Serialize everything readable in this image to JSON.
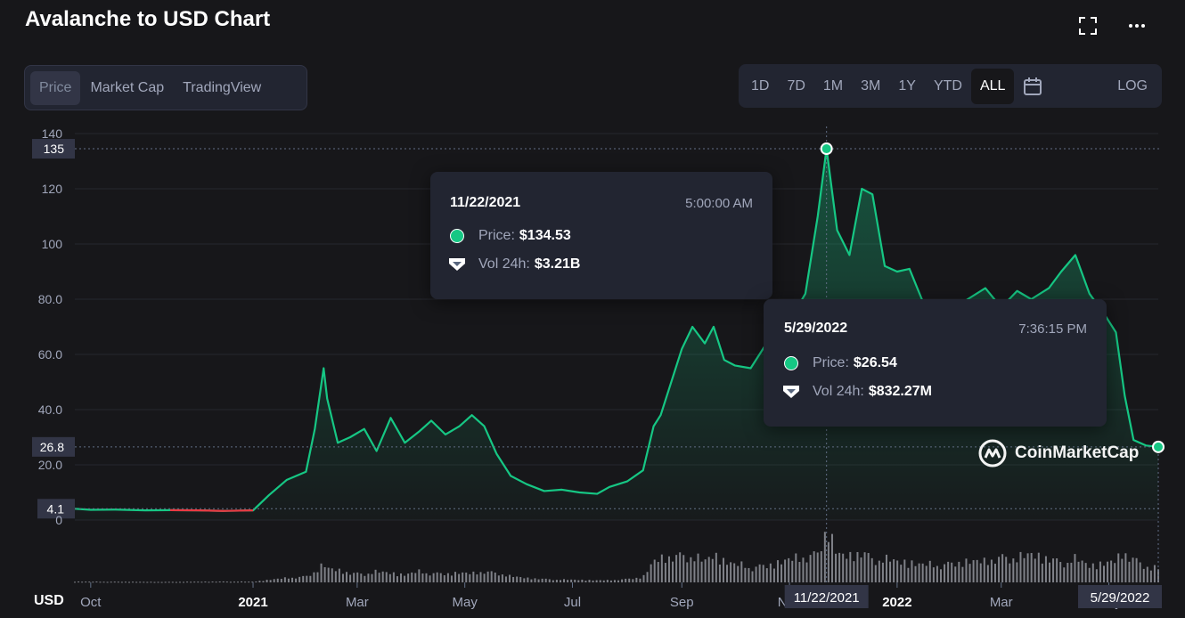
{
  "header": {
    "title": "Avalanche to USD Chart"
  },
  "tabs": [
    "Price",
    "Market Cap",
    "TradingView"
  ],
  "active_tab": "Price",
  "ranges": [
    "1D",
    "7D",
    "1M",
    "3M",
    "1Y",
    "YTD",
    "ALL"
  ],
  "active_range": "ALL",
  "log_label": "LOG",
  "tooltip_peak": {
    "date": "11/22/2021",
    "time": "5:00:00 AM",
    "price_label": "Price:",
    "price": "$134.53",
    "vol_label": "Vol 24h:",
    "vol": "$3.21B"
  },
  "tooltip_current": {
    "date": "5/29/2022",
    "time": "7:36:15 PM",
    "price_label": "Price:",
    "price": "$26.54",
    "vol_label": "Vol 24h:",
    "vol": "$832.27M"
  },
  "watermark": "CoinMarketCap",
  "colors": {
    "up": "#16c784",
    "down": "#ea3943",
    "background": "#17171a",
    "panel": "#222531"
  },
  "chart_data": {
    "type": "area",
    "currency_label": "USD",
    "y_ticks": [
      "140",
      "120",
      "100",
      "80.0",
      "60.0",
      "40.0",
      "20.0",
      "0"
    ],
    "ylim": [
      0,
      140
    ],
    "price_markers": [
      "135",
      "26.8",
      "4.1"
    ],
    "x_ticks": [
      "Oct",
      "2021",
      "Mar",
      "May",
      "Jul",
      "Sep",
      "Nov",
      "2022",
      "Mar",
      "May"
    ],
    "x_highlight": [
      "11/22/2021",
      "5/29/2022"
    ],
    "x": [
      "2020-09-22",
      "2020-10-01",
      "2020-10-15",
      "2020-11-01",
      "2020-11-15",
      "2020-12-01",
      "2020-12-15",
      "2021-01-01",
      "2021-01-10",
      "2021-01-20",
      "2021-01-31",
      "2021-02-05",
      "2021-02-10",
      "2021-02-12",
      "2021-02-18",
      "2021-02-25",
      "2021-03-05",
      "2021-03-12",
      "2021-03-20",
      "2021-03-28",
      "2021-04-05",
      "2021-04-12",
      "2021-04-20",
      "2021-04-28",
      "2021-05-05",
      "2021-05-12",
      "2021-05-19",
      "2021-05-27",
      "2021-06-05",
      "2021-06-15",
      "2021-06-25",
      "2021-07-05",
      "2021-07-15",
      "2021-07-22",
      "2021-08-01",
      "2021-08-10",
      "2021-08-16",
      "2021-08-20",
      "2021-08-25",
      "2021-09-01",
      "2021-09-07",
      "2021-09-14",
      "2021-09-19",
      "2021-09-25",
      "2021-10-01",
      "2021-10-10",
      "2021-10-20",
      "2021-11-01",
      "2021-11-10",
      "2021-11-17",
      "2021-11-22",
      "2021-11-28",
      "2021-12-05",
      "2021-12-12",
      "2021-12-18",
      "2021-12-25",
      "2022-01-01",
      "2022-01-08",
      "2022-01-15",
      "2022-01-22",
      "2022-01-31",
      "2022-02-10",
      "2022-02-20",
      "2022-03-01",
      "2022-03-10",
      "2022-03-18",
      "2022-03-28",
      "2022-04-04",
      "2022-04-12",
      "2022-04-20",
      "2022-04-28",
      "2022-05-05",
      "2022-05-10",
      "2022-05-15",
      "2022-05-22",
      "2022-05-29"
    ],
    "series": [
      {
        "values": [
          4.1,
          3.7,
          3.8,
          3.5,
          3.6,
          3.5,
          3.3,
          3.5,
          9.0,
          14.5,
          17.5,
          33,
          55,
          44,
          28,
          30,
          33,
          25,
          37,
          28,
          32,
          36,
          31,
          34,
          38,
          34,
          24,
          16,
          13,
          10.5,
          11,
          10,
          9.5,
          12,
          14,
          18,
          34,
          38,
          48,
          62,
          70,
          64,
          70,
          58,
          56,
          55,
          65,
          72,
          82,
          110,
          134.5,
          105,
          96,
          120,
          118,
          92,
          90,
          91,
          80,
          70,
          75,
          80,
          84,
          77,
          83,
          80,
          84,
          90,
          96,
          82,
          75,
          68,
          45,
          29,
          27,
          26.5
        ]
      }
    ],
    "volume_series": [
      {
        "name": "Vol 24h",
        "values": [
          0.05,
          0.04,
          0.04,
          0.03,
          0.03,
          0.04,
          0.05,
          0.04,
          0.15,
          0.25,
          0.35,
          0.6,
          1.05,
          0.8,
          0.7,
          0.55,
          0.5,
          0.6,
          0.55,
          0.45,
          0.6,
          0.55,
          0.5,
          0.55,
          0.5,
          0.65,
          0.55,
          0.35,
          0.25,
          0.2,
          0.15,
          0.15,
          0.12,
          0.12,
          0.2,
          0.3,
          1.2,
          1.35,
          1.5,
          1.6,
          1.5,
          1.2,
          1.6,
          1.3,
          1.0,
          0.9,
          1.0,
          1.3,
          1.5,
          1.7,
          3.21,
          1.6,
          1.5,
          1.8,
          1.4,
          1.3,
          1.2,
          1.2,
          1.0,
          1.0,
          1.1,
          1.2,
          1.2,
          1.5,
          1.4,
          1.6,
          1.4,
          1.2,
          1.3,
          1.0,
          1.1,
          1.2,
          1.8,
          1.4,
          0.9,
          0.83
        ]
      }
    ]
  }
}
